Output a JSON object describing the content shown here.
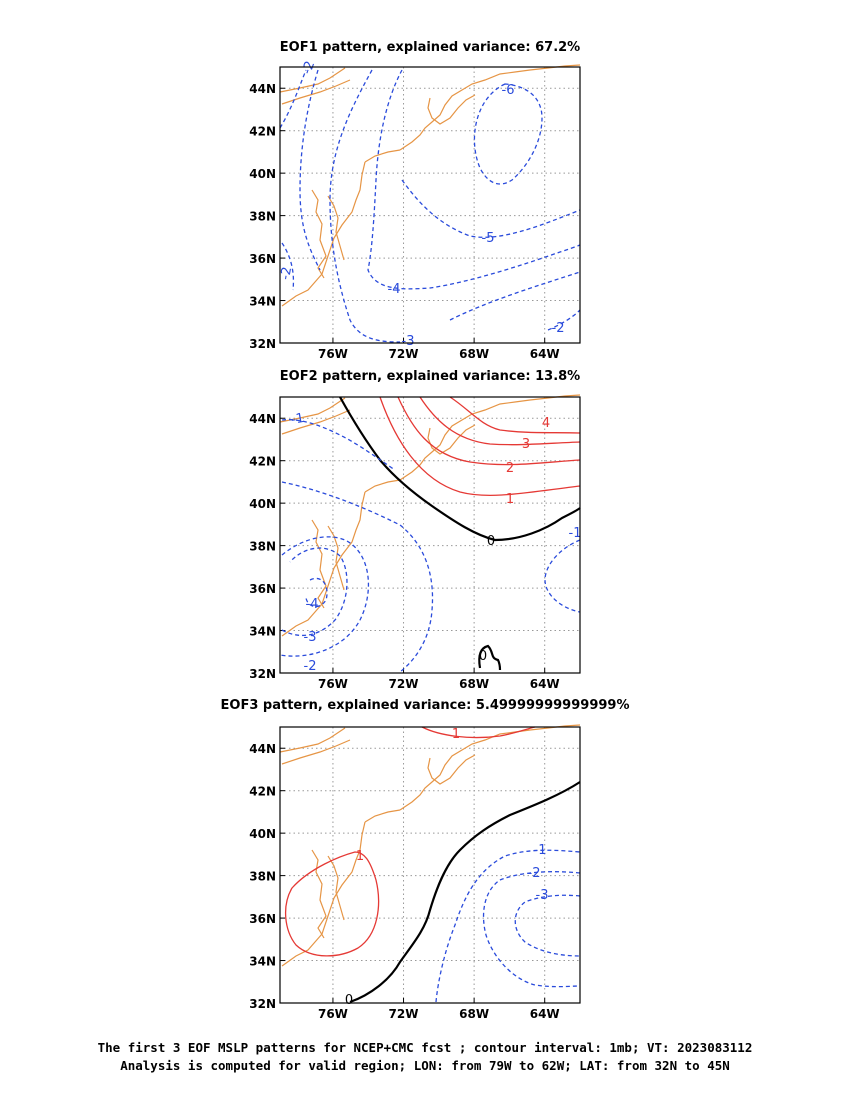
{
  "chart_data": [
    {
      "type": "contour",
      "title": "EOF1 pattern, explained variance: 67.2%",
      "x_ticks": [
        "76W",
        "72W",
        "68W",
        "64W"
      ],
      "y_ticks": [
        "44N",
        "42N",
        "40N",
        "38N",
        "36N",
        "34N",
        "32N"
      ],
      "xlim": [
        "79W",
        "62W"
      ],
      "ylim": [
        "32N",
        "45N"
      ],
      "grid": true,
      "contour_labels": [
        "-2",
        "-6",
        "-5",
        "-4",
        "-3",
        "-2",
        "-2"
      ],
      "colors": {
        "negative": "#2a4bdb",
        "positive": "#e53935",
        "zero": "#000000",
        "coast": "#e69545"
      }
    },
    {
      "type": "contour",
      "title": "EOF2 pattern, explained variance: 13.8%",
      "x_ticks": [
        "76W",
        "72W",
        "68W",
        "64W"
      ],
      "y_ticks": [
        "44N",
        "42N",
        "40N",
        "38N",
        "36N",
        "34N",
        "32N"
      ],
      "xlim": [
        "79W",
        "62W"
      ],
      "ylim": [
        "32N",
        "45N"
      ],
      "grid": true,
      "contour_labels": [
        "-1",
        "4",
        "3",
        "2",
        "1",
        "0",
        "-1",
        "-4",
        "-3",
        "-2",
        "0"
      ]
    },
    {
      "type": "contour",
      "title": "EOF3 pattern, explained variance: 5.49999999999999%",
      "x_ticks": [
        "76W",
        "72W",
        "68W",
        "64W"
      ],
      "y_ticks": [
        "44N",
        "42N",
        "40N",
        "38N",
        "36N",
        "34N",
        "32N"
      ],
      "xlim": [
        "79W",
        "62W"
      ],
      "ylim": [
        "32N",
        "45N"
      ],
      "grid": true,
      "contour_labels": [
        "1",
        "1",
        "-1",
        "-2",
        "-3",
        "0"
      ]
    }
  ],
  "caption": {
    "line1": "The first 3 EOF MSLP patterns for NCEP+CMC fcst ; contour interval: 1mb; VT: 2023083112",
    "line2": "Analysis is computed for valid region; LON: from 79W to 62W; LAT: from 32N to 45N"
  }
}
